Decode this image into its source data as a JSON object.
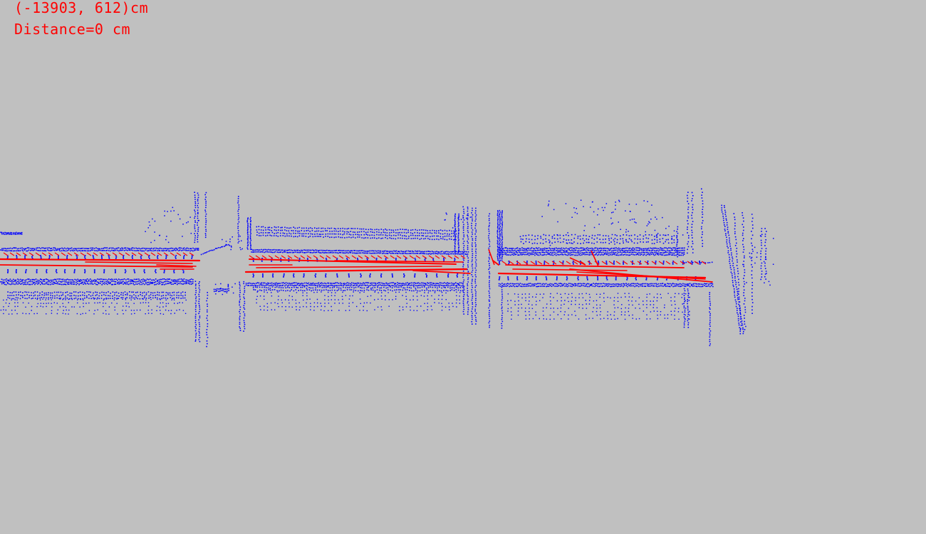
{
  "hud": {
    "coordinate_readout": "(-13903, 612)cm",
    "distance_readout": "Distance=0 cm"
  },
  "colors": {
    "background": "#c0c0c0",
    "point_cloud": "#0000ff",
    "lane_lines": "#ff0000",
    "hud_text": "#ff0000"
  }
}
